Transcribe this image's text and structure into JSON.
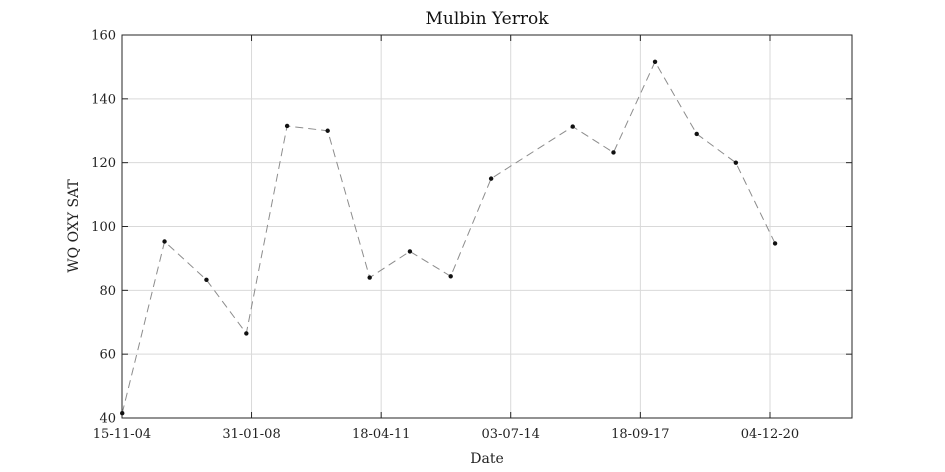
{
  "chart_data": {
    "type": "line",
    "title": "Mulbin Yerrok",
    "xlabel": "Date",
    "ylabel": "WQ OXY SAT",
    "xlim": [
      "2004-11-15",
      "2022-12-16"
    ],
    "ylim": [
      40,
      160
    ],
    "grid": true,
    "x_ticks": [
      {
        "date": "2004-11-15",
        "label": "15-11-04"
      },
      {
        "date": "2008-01-31",
        "label": "31-01-08"
      },
      {
        "date": "2011-04-18",
        "label": "18-04-11"
      },
      {
        "date": "2014-07-03",
        "label": "03-07-14"
      },
      {
        "date": "2017-09-18",
        "label": "18-09-17"
      },
      {
        "date": "2020-12-04",
        "label": "04-12-20"
      }
    ],
    "y_ticks": [
      40,
      60,
      80,
      100,
      120,
      140,
      160
    ],
    "series": [
      {
        "line_color": "#8c8c8c",
        "line_style": "dashed",
        "marker_color": "#111111",
        "points": [
          {
            "x": "2004-11-17",
            "y": 41.5
          },
          {
            "x": "2005-12-05",
            "y": 95.3
          },
          {
            "x": "2006-12-19",
            "y": 83.3
          },
          {
            "x": "2007-12-15",
            "y": 66.5
          },
          {
            "x": "2008-12-18",
            "y": 131.5
          },
          {
            "x": "2009-12-20",
            "y": 130.0
          },
          {
            "x": "2011-01-04",
            "y": 84.0
          },
          {
            "x": "2012-01-03",
            "y": 92.2
          },
          {
            "x": "2013-01-06",
            "y": 84.4
          },
          {
            "x": "2014-01-07",
            "y": 115.0
          },
          {
            "x": "2016-01-15",
            "y": 131.3
          },
          {
            "x": "2017-01-18",
            "y": 123.2
          },
          {
            "x": "2018-01-29",
            "y": 151.6
          },
          {
            "x": "2019-02-10",
            "y": 129.0
          },
          {
            "x": "2020-01-30",
            "y": 120.0
          },
          {
            "x": "2021-01-19",
            "y": 94.7
          }
        ]
      }
    ]
  }
}
